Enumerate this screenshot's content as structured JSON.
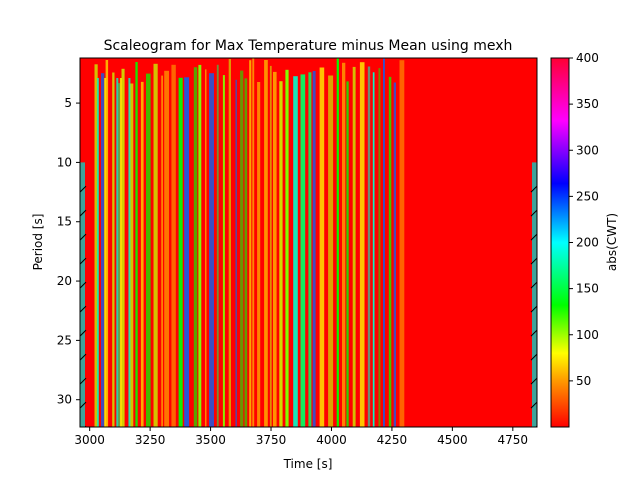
{
  "chart_data": {
    "type": "heatmap",
    "title": "Scaleogram for Max Temperature minus Mean using mexh",
    "xlabel": "Time [s]",
    "ylabel": "Period [s]",
    "xlim": [
      2960,
      4850
    ],
    "ylim": [
      32.3,
      1.2
    ],
    "y_inverted": true,
    "x_ticks": [
      3000,
      3250,
      3500,
      3750,
      4000,
      4250,
      4500,
      4750
    ],
    "x_tick_labels": [
      "3000",
      "3250",
      "3500",
      "3750",
      "4000",
      "4250",
      "4500",
      "4750"
    ],
    "y_ticks": [
      5,
      10,
      15,
      20,
      25,
      30
    ],
    "y_tick_labels": [
      "5",
      "10",
      "15",
      "20",
      "25",
      "30"
    ],
    "colorbar": {
      "label": "abs(CWT)",
      "colormap": "hsv",
      "range": [
        0,
        400
      ],
      "ticks": [
        50,
        100,
        150,
        200,
        250,
        300,
        350,
        400
      ],
      "tick_labels": [
        "50",
        "100",
        "150",
        "200",
        "250",
        "300",
        "350",
        "400"
      ]
    },
    "regions": [
      {
        "x_range": [
          2960,
          3020
        ],
        "description_level": "high",
        "approx_value": 400
      },
      {
        "x_range": [
          3020,
          4300
        ],
        "description_level": "oscillating",
        "approx_value_range": [
          20,
          250
        ]
      },
      {
        "x_range": [
          4300,
          4820
        ],
        "description_level": "high",
        "approx_value": 400
      },
      {
        "x_range": [
          4820,
          4850
        ],
        "description_level": "cone-of-influence edge",
        "approx_value": 180
      }
    ],
    "cone_of_influence": "hatched edges at both sides",
    "colors": {
      "saturated": "#ff0000",
      "yellow": "#ffff00",
      "green": "#00ff00",
      "cyan": "#00ffff",
      "blue": "#0000ff",
      "magenta": "#ff00ff",
      "coi_edge": "#3fa39a"
    }
  }
}
